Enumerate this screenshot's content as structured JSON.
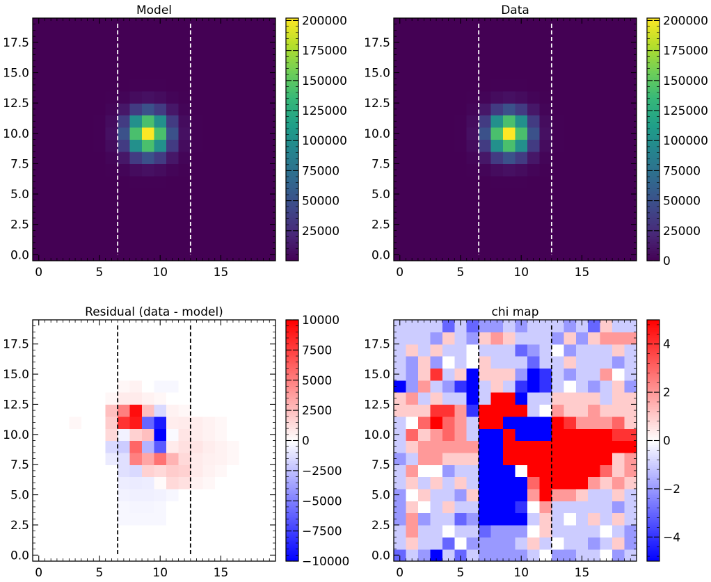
{
  "figure": {
    "background": "#ffffff"
  },
  "chart_data": [
    {
      "type": "heatmap",
      "title": "Model",
      "xlabel": "",
      "ylabel": "",
      "xlim": [
        -0.5,
        19.5
      ],
      "ylim": [
        -0.5,
        19.5
      ],
      "xticks": [
        0,
        5,
        10,
        15
      ],
      "yticks": [
        0.0,
        2.5,
        5.0,
        7.5,
        10.0,
        12.5,
        15.0,
        17.5
      ],
      "colormap": "viridis",
      "vmin": 0,
      "vmax": 202000,
      "colorbar_ticks": [
        25000,
        50000,
        75000,
        100000,
        125000,
        150000,
        175000,
        200000
      ],
      "vlines": {
        "x": [
          6.5,
          12.5
        ],
        "style": "dashed",
        "color": "#ffffff"
      },
      "grid": false,
      "values_generator": "gaussian",
      "gaussian": {
        "amplitude": 202000,
        "x0": 9.0,
        "y0": 10.0,
        "sigma": 1.2
      }
    },
    {
      "type": "heatmap",
      "title": "Data",
      "xlabel": "",
      "ylabel": "",
      "xlim": [
        -0.5,
        19.5
      ],
      "ylim": [
        -0.5,
        19.5
      ],
      "xticks": [
        0,
        5,
        10,
        15
      ],
      "yticks": [
        0.0,
        2.5,
        5.0,
        7.5,
        10.0,
        12.5,
        15.0,
        17.5
      ],
      "colormap": "viridis",
      "vmin": 0,
      "vmax": 202000,
      "colorbar_ticks": [
        0,
        25000,
        50000,
        75000,
        100000,
        125000,
        150000,
        175000,
        200000
      ],
      "vlines": {
        "x": [
          6.5,
          12.5
        ],
        "style": "dashed",
        "color": "#ffffff"
      },
      "grid": false,
      "values_generator": "gaussian",
      "gaussian": {
        "amplitude": 202000,
        "x0": 9.0,
        "y0": 10.0,
        "sigma": 1.2
      }
    },
    {
      "type": "heatmap",
      "title": "Residual (data - model)",
      "xlabel": "",
      "ylabel": "",
      "xlim": [
        -0.5,
        19.5
      ],
      "ylim": [
        -0.5,
        19.5
      ],
      "xticks": [
        0,
        5,
        10,
        15
      ],
      "yticks": [
        0.0,
        2.5,
        5.0,
        7.5,
        10.0,
        12.5,
        15.0,
        17.5
      ],
      "colormap": "bwr",
      "vmin": -10000,
      "vmax": 10000,
      "colorbar_ticks": [
        -10000,
        -7500,
        -5000,
        -2500,
        0,
        2500,
        5000,
        7500,
        10000
      ],
      "vlines": {
        "x": [
          6.5,
          12.5
        ],
        "style": "dashed",
        "color": "#000000"
      },
      "grid": false,
      "values": [
        [
          0,
          0,
          0,
          0,
          0,
          0,
          0,
          0,
          0,
          0,
          0,
          0,
          0,
          0,
          0,
          0,
          0,
          0,
          0,
          0
        ],
        [
          0,
          0,
          0,
          0,
          0,
          0,
          0,
          0,
          0,
          0,
          0,
          0,
          0,
          0,
          0,
          0,
          0,
          0,
          0,
          0
        ],
        [
          0,
          0,
          0,
          0,
          0,
          0,
          0,
          0,
          0,
          0,
          0,
          0,
          0,
          0,
          0,
          0,
          0,
          0,
          0,
          0
        ],
        [
          0,
          0,
          0,
          0,
          0,
          0,
          0,
          -300,
          -300,
          -300,
          -300,
          0,
          0,
          0,
          0,
          0,
          0,
          0,
          0,
          0
        ],
        [
          0,
          0,
          0,
          0,
          0,
          0,
          0,
          -300,
          -400,
          -400,
          -300,
          0,
          0,
          0,
          0,
          0,
          0,
          0,
          0,
          0
        ],
        [
          0,
          0,
          0,
          0,
          0,
          0,
          0,
          -500,
          -600,
          -600,
          -500,
          -300,
          0,
          0,
          0,
          0,
          0,
          0,
          0,
          0
        ],
        [
          0,
          0,
          0,
          0,
          0,
          0,
          0,
          -700,
          -800,
          -700,
          200,
          1500,
          1200,
          500,
          300,
          0,
          0,
          0,
          0,
          0
        ],
        [
          0,
          0,
          0,
          0,
          0,
          0,
          0,
          -1200,
          -1500,
          1800,
          1500,
          2000,
          1800,
          800,
          500,
          300,
          0,
          0,
          0,
          0
        ],
        [
          0,
          0,
          0,
          0,
          0,
          0,
          -800,
          -1200,
          5000,
          3500,
          5500,
          3000,
          1500,
          800,
          600,
          500,
          300,
          0,
          0,
          0
        ],
        [
          0,
          0,
          0,
          0,
          0,
          0,
          -1500,
          -2000,
          6000,
          -3000,
          -6500,
          800,
          1200,
          1000,
          700,
          500,
          300,
          0,
          0,
          0
        ],
        [
          0,
          0,
          0,
          0,
          0,
          0,
          1500,
          -500,
          1800,
          2500,
          -10000,
          -200,
          1000,
          700,
          500,
          300,
          0,
          0,
          0,
          0
        ],
        [
          0,
          0,
          0,
          300,
          0,
          0,
          2000,
          8000,
          9000,
          -6000,
          -9000,
          700,
          800,
          700,
          500,
          300,
          0,
          0,
          0,
          0
        ],
        [
          0,
          0,
          0,
          0,
          0,
          0,
          2500,
          5000,
          9500,
          2500,
          -1500,
          500,
          300,
          0,
          0,
          0,
          0,
          0,
          0,
          0
        ],
        [
          0,
          0,
          0,
          0,
          0,
          0,
          300,
          800,
          800,
          500,
          300,
          0,
          0,
          0,
          0,
          0,
          0,
          0,
          0,
          0
        ],
        [
          0,
          0,
          0,
          0,
          0,
          0,
          0,
          300,
          500,
          0,
          -300,
          -300,
          0,
          0,
          0,
          0,
          0,
          0,
          0,
          0
        ],
        [
          0,
          0,
          0,
          0,
          0,
          0,
          0,
          0,
          0,
          0,
          0,
          0,
          0,
          0,
          0,
          0,
          0,
          0,
          0,
          0
        ],
        [
          0,
          0,
          0,
          0,
          0,
          0,
          0,
          0,
          0,
          0,
          0,
          0,
          0,
          0,
          0,
          0,
          0,
          0,
          0,
          0
        ],
        [
          0,
          0,
          0,
          0,
          0,
          0,
          0,
          0,
          0,
          0,
          0,
          0,
          0,
          0,
          0,
          0,
          0,
          0,
          0,
          0
        ],
        [
          0,
          0,
          0,
          0,
          0,
          0,
          0,
          0,
          0,
          0,
          0,
          0,
          0,
          0,
          0,
          0,
          0,
          0,
          0,
          0
        ],
        [
          0,
          0,
          0,
          0,
          0,
          0,
          0,
          0,
          0,
          0,
          0,
          0,
          0,
          0,
          0,
          0,
          0,
          0,
          0,
          0
        ]
      ]
    },
    {
      "type": "heatmap",
      "title": "chi map",
      "xlabel": "",
      "ylabel": "",
      "xlim": [
        -0.5,
        19.5
      ],
      "ylim": [
        -0.5,
        19.5
      ],
      "xticks": [
        0,
        5,
        10,
        15
      ],
      "yticks": [
        0.0,
        2.5,
        5.0,
        7.5,
        10.0,
        12.5,
        15.0,
        17.5
      ],
      "colormap": "bwr",
      "vmin": -5,
      "vmax": 5,
      "colorbar_ticks": [
        -4,
        -2,
        0,
        2,
        4
      ],
      "vlines": {
        "x": [
          6.5,
          12.5
        ],
        "style": "dashed",
        "color": "#000000"
      },
      "grid": false,
      "values": [
        [
          -3,
          -1,
          -2,
          -5,
          -1,
          -3,
          -1,
          -2,
          -2,
          -2,
          -2,
          -1,
          0,
          -2,
          -2,
          -1,
          -1,
          0,
          -2,
          -1
        ],
        [
          -1,
          1,
          -1,
          -1,
          -3,
          0,
          -2,
          -2,
          -2,
          -2,
          -1,
          1,
          -1,
          0,
          -1,
          -1,
          -2,
          -1,
          1,
          -2
        ],
        [
          -1,
          2,
          -1,
          -1,
          0,
          -1,
          -1,
          -3,
          -2,
          -2,
          -2,
          0,
          1,
          -1,
          -1,
          -1,
          -1,
          0,
          -1,
          -2
        ],
        [
          -2,
          2,
          -2,
          -1,
          -1,
          -3,
          -2,
          -5,
          -5,
          -5,
          -5,
          -1,
          1,
          -1,
          0,
          -1,
          1,
          -1,
          1,
          -1
        ],
        [
          -2,
          1,
          0,
          -1,
          1,
          -1,
          -1,
          -5,
          -5,
          -5,
          -4,
          0,
          2,
          -1,
          -1,
          -1,
          -1,
          -1,
          -2,
          -1
        ],
        [
          -2,
          0,
          1,
          -1,
          -1,
          -2,
          1,
          -5,
          -5,
          -5,
          -5,
          2,
          5,
          2,
          2,
          1,
          -1,
          -1,
          1,
          -1
        ],
        [
          -1,
          1,
          -1,
          1,
          -1,
          1,
          -1,
          -5,
          -5,
          -5,
          -5,
          3,
          5,
          5,
          5,
          5,
          2,
          1,
          2,
          1
        ],
        [
          -1,
          2,
          0,
          0,
          -2,
          -1,
          -1,
          -5,
          -5,
          -5,
          0,
          5,
          5,
          5,
          5,
          5,
          5,
          3,
          1,
          2
        ],
        [
          -2,
          -1,
          2,
          2,
          1,
          1,
          1,
          -5,
          -5,
          5,
          5,
          5,
          5,
          5,
          5,
          5,
          5,
          5,
          1,
          2
        ],
        [
          -1,
          1,
          2,
          2,
          2,
          2,
          2,
          -5,
          -5,
          5,
          5,
          5,
          5,
          5,
          5,
          5,
          5,
          5,
          5,
          5
        ],
        [
          -1,
          3,
          1,
          2,
          3,
          2,
          -1,
          -5,
          -5,
          5,
          -5,
          -5,
          -5,
          5,
          5,
          5,
          5,
          5,
          4,
          4
        ],
        [
          -1,
          0,
          3,
          5,
          3,
          2,
          -1,
          5,
          5,
          -5,
          -5,
          -5,
          -5,
          5,
          4,
          2,
          2,
          2,
          3,
          1
        ],
        [
          1,
          1,
          1,
          4,
          4,
          2,
          -4,
          5,
          5,
          5,
          5,
          -1,
          0,
          2,
          1,
          1,
          2,
          1,
          1,
          1
        ],
        [
          1,
          2,
          -1,
          1,
          -1,
          -1,
          -5,
          -1,
          5,
          5,
          -5,
          -1,
          -1,
          1,
          1,
          1,
          1,
          -1,
          1,
          1
        ],
        [
          -5,
          -2,
          2,
          -1,
          -2,
          -4,
          -5,
          -1,
          1,
          -1,
          -4,
          -5,
          -4,
          -1,
          0,
          -1,
          -2,
          -1,
          1,
          -2
        ],
        [
          -1,
          -2,
          1,
          4,
          -1,
          1,
          -5,
          1,
          1,
          1,
          -2,
          -5,
          -4,
          -1,
          -2,
          -1,
          -1,
          2,
          0,
          -1
        ],
        [
          -1,
          -2,
          1,
          -2,
          0,
          -1,
          0,
          1,
          -1,
          -1,
          -1,
          -3,
          -1,
          -1,
          1,
          -1,
          -1,
          -1,
          -2,
          -1
        ],
        [
          -1,
          1,
          -1,
          1,
          -1,
          -1,
          0,
          -1,
          -1,
          -1,
          -3,
          -2,
          -1,
          0,
          -2,
          -1,
          -1,
          -1,
          1,
          -1
        ],
        [
          -1,
          -1,
          -1,
          -2,
          1,
          -1,
          -2,
          1,
          2,
          1,
          -1,
          -1,
          -1,
          -2,
          1,
          -2,
          1,
          2,
          2,
          2
        ],
        [
          -1,
          -1,
          -1,
          -1,
          -3,
          -1,
          -3,
          -2,
          -2,
          -1,
          -2,
          -1,
          -1,
          -1,
          -2,
          -1,
          -3,
          1,
          -1,
          -1
        ]
      ]
    }
  ]
}
